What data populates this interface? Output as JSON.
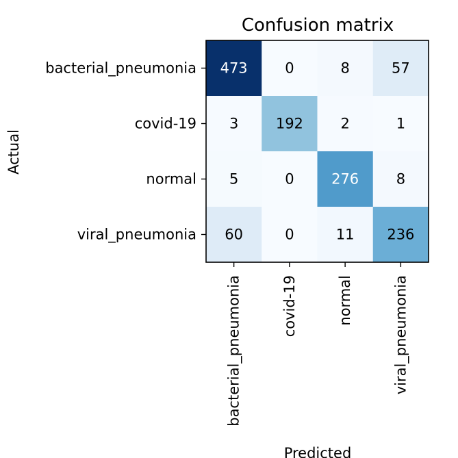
{
  "chart_data": {
    "type": "heatmap",
    "title": "Confusion matrix",
    "xlabel": "Predicted",
    "ylabel": "Actual",
    "x_categories": [
      "bacterial_pneumonia",
      "covid-19",
      "normal",
      "viral_pneumonia"
    ],
    "y_categories": [
      "bacterial_pneumonia",
      "covid-19",
      "normal",
      "viral_pneumonia"
    ],
    "values": [
      [
        473,
        0,
        8,
        57
      ],
      [
        3,
        192,
        2,
        1
      ],
      [
        5,
        0,
        276,
        8
      ],
      [
        60,
        0,
        11,
        236
      ]
    ],
    "colormap": "Blues",
    "vmin": 0,
    "vmax": 473,
    "grid": false
  },
  "colors": {
    "text_dark": "#000000",
    "text_light": "#ffffff",
    "frame": "#000000"
  }
}
